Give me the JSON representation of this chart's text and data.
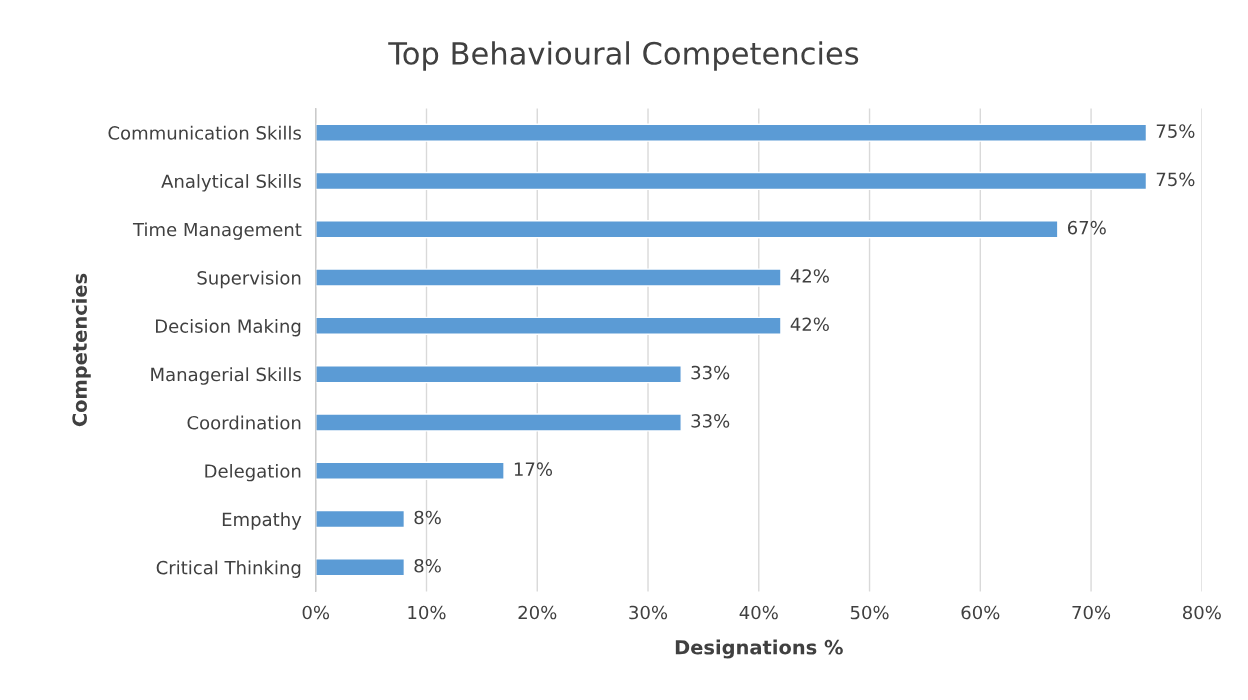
{
  "chart_data": {
    "type": "bar",
    "orientation": "horizontal",
    "title": "Top Behavioural Competencies",
    "xlabel": "Designations %",
    "ylabel": "Competencies",
    "categories": [
      "Communication Skills",
      "Analytical Skills",
      "Time Management",
      "Supervision",
      "Decision Making",
      "Managerial Skills",
      "Coordination",
      "Delegation",
      "Empathy",
      "Critical Thinking"
    ],
    "values": [
      75,
      75,
      67,
      42,
      42,
      33,
      33,
      17,
      8,
      8
    ],
    "value_labels": [
      "75%",
      "75%",
      "67%",
      "42%",
      "42%",
      "33%",
      "33%",
      "17%",
      "8%",
      "8%"
    ],
    "color": "#5b9bd5",
    "xlim": [
      0,
      80
    ],
    "xticks": [
      {
        "value": 0,
        "label": "0%"
      },
      {
        "value": 10,
        "label": "10%"
      },
      {
        "value": 20,
        "label": "20%"
      },
      {
        "value": 30,
        "label": "30%"
      },
      {
        "value": 40,
        "label": "40%"
      },
      {
        "value": 50,
        "label": "50%"
      },
      {
        "value": 60,
        "label": "60%"
      },
      {
        "value": 70,
        "label": "70%"
      },
      {
        "value": 80,
        "label": "80%"
      }
    ],
    "grid": "x"
  }
}
